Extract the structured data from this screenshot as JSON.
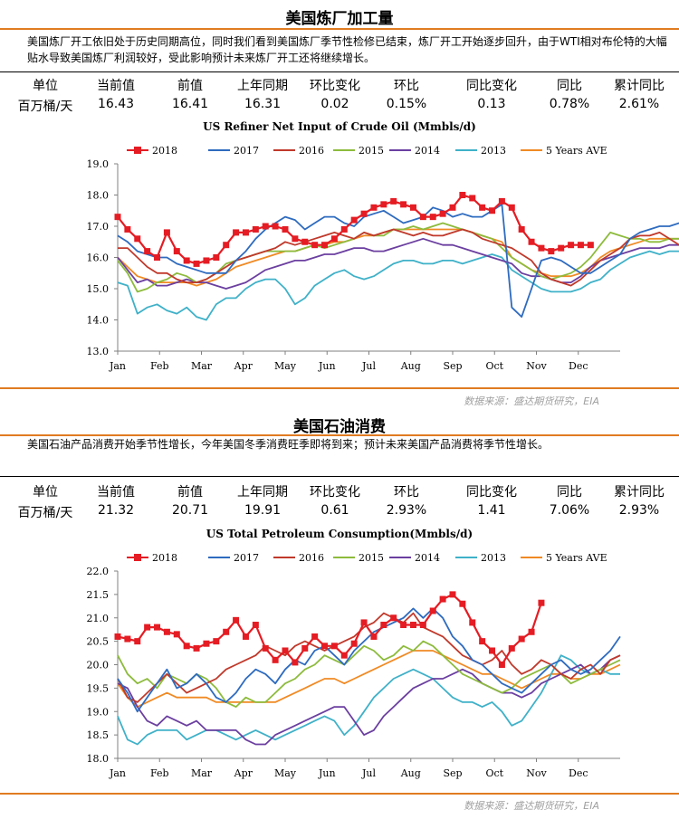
{
  "sections": [
    {
      "title": "美国炼厂加工量",
      "description": "美国炼厂开工依旧处于历史同期高位，同时我们看到美国炼厂季节性检修已结束，炼厂开工开始逐步回升，由于WTI相对布伦特的大幅贴水导致美国炼厂利润较好，受此影响预计未来炼厂开工还将继续增长。",
      "stats_headers": [
        "单位",
        "当前值",
        "前值",
        "上年同期",
        "环比变化",
        "环比",
        "同比变化",
        "同比",
        "累计同比"
      ],
      "stats_values": [
        "百万桶/天",
        "16.43",
        "16.41",
        "16.31",
        "0.02",
        "0.15%",
        "0.13",
        "0.78%",
        "2.61%"
      ],
      "source": "数据来源：盛达期货研究，EIA"
    },
    {
      "title": "美国石油消费",
      "description": "美国石油产品消费开始季节性增长，今年美国冬季消费旺季即将到来；预计未来美国产品消费将季节性增长。",
      "stats_headers": [
        "单位",
        "当前值",
        "前值",
        "上年同期",
        "环比变化",
        "环比",
        "同比变化",
        "同比",
        "累计同比"
      ],
      "stats_values": [
        "百万桶/天",
        "21.32",
        "20.71",
        "19.91",
        "0.61",
        "2.93%",
        "1.41",
        "7.06%",
        "2.93%"
      ],
      "source": "数据来源：盛达期货研究，EIA"
    }
  ],
  "chart_data": [
    {
      "type": "line",
      "title": "US Refiner Net Input of Crude Oil (Mmbls/d)",
      "x_labels": [
        "Jan",
        "Feb",
        "Mar",
        "Apr",
        "May",
        "Jun",
        "Jul",
        "Aug",
        "Sep",
        "Oct",
        "Nov",
        "Dec"
      ],
      "y_ticks": [
        "19.0",
        "18.0",
        "17.0",
        "16.0",
        "15.0",
        "14.0",
        "13.0"
      ],
      "ylim": [
        13,
        19
      ],
      "weeks": 52,
      "grid": false,
      "legend_position": "top",
      "series": [
        {
          "name": "2018",
          "color": "#e51c23",
          "marker": true,
          "values": [
            17.3,
            16.9,
            16.6,
            16.2,
            16.0,
            16.8,
            16.2,
            15.9,
            15.8,
            15.9,
            16.0,
            16.4,
            16.8,
            16.8,
            16.9,
            17.0,
            17.0,
            16.9,
            16.6,
            16.5,
            16.4,
            16.4,
            16.6,
            16.9,
            17.2,
            17.4,
            17.6,
            17.7,
            17.8,
            17.7,
            17.6,
            17.3,
            17.3,
            17.4,
            17.6,
            18.0,
            17.9,
            17.6,
            17.5,
            17.8,
            17.6,
            16.9,
            16.5,
            16.3,
            16.2,
            16.3,
            16.4,
            16.4,
            16.4
          ]
        },
        {
          "name": "2017",
          "color": "#2e6bbf",
          "values": [
            16.7,
            16.5,
            16.2,
            16.1,
            16.0,
            16.0,
            15.8,
            15.7,
            15.6,
            15.5,
            15.5,
            15.5,
            15.9,
            16.2,
            16.6,
            16.9,
            17.1,
            17.3,
            17.2,
            16.9,
            17.1,
            17.3,
            17.3,
            17.1,
            17.0,
            17.3,
            17.4,
            17.5,
            17.3,
            17.1,
            17.2,
            17.3,
            17.6,
            17.5,
            17.3,
            17.4,
            17.3,
            17.3,
            17.5,
            17.7,
            14.4,
            14.1,
            15.0,
            15.9,
            16.0,
            15.9,
            15.7,
            15.5,
            15.5,
            15.7,
            15.9,
            16.1,
            16.6,
            16.8,
            16.9,
            17.0,
            17.0,
            17.1,
            17.2,
            16.9,
            17.0,
            17.4
          ]
        },
        {
          "name": "2016",
          "color": "#c0392b",
          "values": [
            16.3,
            16.3,
            16.0,
            15.7,
            15.5,
            15.5,
            15.3,
            15.2,
            15.2,
            15.3,
            15.5,
            15.7,
            15.9,
            16.0,
            16.1,
            16.2,
            16.3,
            16.5,
            16.4,
            16.5,
            16.6,
            16.7,
            16.8,
            16.7,
            16.6,
            16.8,
            16.7,
            16.8,
            16.9,
            16.8,
            16.7,
            16.8,
            16.7,
            16.7,
            16.8,
            16.9,
            16.8,
            16.6,
            16.5,
            16.4,
            16.3,
            16.1,
            15.9,
            15.5,
            15.3,
            15.2,
            15.1,
            15.3,
            15.6,
            15.9,
            16.1,
            16.3,
            16.6,
            16.7,
            16.7,
            16.8,
            16.6,
            16.4,
            16.5,
            16.5,
            16.6,
            16.6
          ]
        },
        {
          "name": "2015",
          "color": "#8dbb3c",
          "values": [
            15.9,
            15.5,
            14.9,
            15.0,
            15.2,
            15.3,
            15.5,
            15.4,
            15.2,
            15.3,
            15.5,
            15.8,
            15.9,
            16.0,
            16.1,
            16.2,
            16.2,
            16.2,
            16.2,
            16.3,
            16.4,
            16.3,
            16.4,
            16.5,
            16.6,
            16.8,
            16.7,
            16.7,
            16.9,
            16.9,
            17.0,
            16.9,
            17.0,
            17.1,
            17.0,
            16.9,
            16.8,
            16.7,
            16.6,
            16.3,
            16.0,
            15.8,
            15.6,
            15.4,
            15.3,
            15.4,
            15.5,
            15.7,
            16.0,
            16.4,
            16.8,
            16.7,
            16.6,
            16.6,
            16.5,
            16.5,
            16.6,
            16.6,
            16.7,
            16.7,
            16.5,
            16.6
          ]
        },
        {
          "name": "2014",
          "color": "#6b3fa0",
          "values": [
            16.0,
            15.6,
            15.2,
            15.3,
            15.1,
            15.1,
            15.2,
            15.3,
            15.2,
            15.2,
            15.1,
            15.0,
            15.1,
            15.2,
            15.4,
            15.6,
            15.7,
            15.8,
            15.9,
            15.9,
            16.0,
            16.1,
            16.1,
            16.2,
            16.3,
            16.3,
            16.2,
            16.2,
            16.3,
            16.4,
            16.5,
            16.6,
            16.5,
            16.4,
            16.4,
            16.3,
            16.2,
            16.1,
            16.0,
            15.9,
            15.8,
            15.5,
            15.4,
            15.4,
            15.3,
            15.2,
            15.2,
            15.4,
            15.7,
            15.9,
            16.0,
            16.1,
            16.2,
            16.3,
            16.3,
            16.3,
            16.4,
            16.4,
            16.4,
            16.4,
            16.3,
            16.4
          ]
        },
        {
          "name": "2013",
          "color": "#3fb1c8",
          "values": [
            15.2,
            15.1,
            14.2,
            14.4,
            14.5,
            14.3,
            14.2,
            14.4,
            14.1,
            14.0,
            14.5,
            14.7,
            14.7,
            15.0,
            15.2,
            15.3,
            15.3,
            15.0,
            14.5,
            14.7,
            15.1,
            15.3,
            15.5,
            15.6,
            15.4,
            15.3,
            15.4,
            15.6,
            15.8,
            15.9,
            15.9,
            15.8,
            15.8,
            15.9,
            15.9,
            15.8,
            15.9,
            16.0,
            16.1,
            16.0,
            15.6,
            15.4,
            15.2,
            15.0,
            14.9,
            14.9,
            14.9,
            15.0,
            15.2,
            15.3,
            15.6,
            15.8,
            16.0,
            16.1,
            16.2,
            16.1,
            16.2,
            16.2,
            16.3,
            16.2,
            16.2,
            16.3
          ]
        },
        {
          "name": "5 Years AVE",
          "color": "#f08a24",
          "values": [
            16.0,
            15.7,
            15.4,
            15.3,
            15.2,
            15.2,
            15.2,
            15.2,
            15.1,
            15.2,
            15.3,
            15.5,
            15.7,
            15.8,
            15.9,
            16.0,
            16.1,
            16.2,
            16.2,
            16.3,
            16.4,
            16.4,
            16.5,
            16.5,
            16.6,
            16.7,
            16.7,
            16.8,
            16.9,
            16.9,
            16.9,
            16.9,
            16.9,
            16.9,
            16.9,
            16.9,
            16.8,
            16.7,
            16.6,
            16.5,
            16.0,
            15.8,
            15.6,
            15.5,
            15.4,
            15.4,
            15.4,
            15.5,
            15.7,
            16.0,
            16.2,
            16.3,
            16.4,
            16.5,
            16.6,
            16.6,
            16.6,
            16.6,
            16.6,
            16.6,
            16.6,
            16.7
          ]
        }
      ]
    },
    {
      "type": "line",
      "title": "US Total Petroleum Consumption(Mmbls/d)",
      "x_labels": [
        "Jan",
        "Feb",
        "Mar",
        "Apr",
        "May",
        "Jun",
        "Jul",
        "Aug",
        "Sep",
        "Oct",
        "Nov",
        "Dec"
      ],
      "y_ticks": [
        "22.0",
        "21.5",
        "21.0",
        "20.5",
        "20.0",
        "19.5",
        "19.0",
        "18.5",
        "18.0"
      ],
      "ylim": [
        18,
        22
      ],
      "weeks": 52,
      "grid": false,
      "legend_position": "top",
      "series": [
        {
          "name": "2018",
          "color": "#e51c23",
          "marker": true,
          "values": [
            20.6,
            20.55,
            20.5,
            20.8,
            20.8,
            20.7,
            20.65,
            20.4,
            20.35,
            20.45,
            20.5,
            20.7,
            20.95,
            20.6,
            20.85,
            20.35,
            20.1,
            20.3,
            20.05,
            20.35,
            20.6,
            20.4,
            20.4,
            20.2,
            20.45,
            20.9,
            20.6,
            20.85,
            21.0,
            20.85,
            20.85,
            20.85,
            21.15,
            21.4,
            21.5,
            21.3,
            20.9,
            20.5,
            20.3,
            20.0,
            20.35,
            20.55,
            20.7,
            21.32
          ]
        },
        {
          "name": "2017",
          "color": "#2e6bbf",
          "values": [
            19.7,
            19.4,
            19.0,
            19.3,
            19.6,
            19.9,
            19.5,
            19.6,
            19.8,
            19.6,
            19.3,
            19.2,
            19.4,
            19.7,
            19.9,
            19.8,
            19.6,
            19.9,
            20.1,
            20.0,
            20.3,
            20.4,
            20.2,
            20.0,
            20.3,
            20.5,
            20.7,
            20.8,
            20.9,
            21.0,
            21.2,
            21.0,
            21.2,
            21.0,
            20.6,
            20.4,
            20.1,
            20.0,
            19.8,
            19.6,
            19.5,
            19.4,
            19.6,
            19.8,
            20.0,
            20.1,
            19.9,
            19.8,
            19.9,
            20.1,
            20.3,
            20.6
          ]
        },
        {
          "name": "2016",
          "color": "#c0392b",
          "values": [
            19.7,
            19.3,
            19.2,
            19.4,
            19.6,
            19.8,
            19.6,
            19.4,
            19.5,
            19.6,
            19.7,
            19.9,
            20.0,
            20.1,
            20.2,
            20.4,
            20.3,
            20.2,
            20.4,
            20.5,
            20.4,
            20.3,
            20.4,
            20.5,
            20.6,
            20.8,
            20.9,
            21.1,
            21.0,
            20.9,
            21.1,
            20.8,
            20.7,
            20.6,
            20.4,
            20.2,
            20.1,
            20.0,
            20.1,
            20.3,
            20.0,
            19.8,
            19.9,
            20.1,
            20.0,
            19.8,
            19.7,
            19.9,
            20.0,
            19.8,
            20.1,
            20.2
          ]
        },
        {
          "name": "2015",
          "color": "#8dbb3c",
          "values": [
            20.2,
            19.8,
            19.6,
            19.7,
            19.5,
            19.8,
            19.7,
            19.6,
            19.8,
            19.7,
            19.5,
            19.2,
            19.1,
            19.3,
            19.2,
            19.2,
            19.4,
            19.6,
            19.7,
            19.9,
            20.0,
            20.2,
            20.1,
            20.0,
            20.2,
            20.4,
            20.3,
            20.1,
            20.2,
            20.4,
            20.3,
            20.5,
            20.4,
            20.2,
            20.0,
            19.8,
            19.7,
            19.6,
            19.5,
            19.4,
            19.5,
            19.7,
            19.8,
            19.9,
            20.0,
            19.8,
            19.6,
            19.7,
            19.8,
            19.9,
            20.0,
            20.1
          ]
        },
        {
          "name": "2014",
          "color": "#6b3fa0",
          "values": [
            19.6,
            19.5,
            19.1,
            18.8,
            18.7,
            18.9,
            18.8,
            18.7,
            18.8,
            18.6,
            18.6,
            18.6,
            18.6,
            18.4,
            18.3,
            18.3,
            18.5,
            18.6,
            18.7,
            18.8,
            18.9,
            19.0,
            19.1,
            19.1,
            18.8,
            18.5,
            18.6,
            18.9,
            19.1,
            19.3,
            19.5,
            19.6,
            19.7,
            19.7,
            19.8,
            19.9,
            19.8,
            19.6,
            19.5,
            19.4,
            19.4,
            19.3,
            19.4,
            19.6,
            19.7,
            19.8,
            19.9,
            20.0,
            19.8,
            19.9,
            20.1,
            20.2
          ]
        },
        {
          "name": "2013",
          "color": "#3fb1c8",
          "values": [
            18.9,
            18.4,
            18.3,
            18.5,
            18.6,
            18.6,
            18.6,
            18.4,
            18.5,
            18.6,
            18.6,
            18.5,
            18.4,
            18.5,
            18.6,
            18.5,
            18.4,
            18.5,
            18.6,
            18.7,
            18.8,
            18.9,
            18.8,
            18.5,
            18.7,
            19.0,
            19.3,
            19.5,
            19.7,
            19.8,
            19.9,
            19.8,
            19.7,
            19.5,
            19.3,
            19.2,
            19.2,
            19.1,
            19.2,
            19.0,
            18.7,
            18.8,
            19.1,
            19.4,
            19.8,
            20.2,
            20.1,
            19.9,
            19.8,
            19.9,
            19.8,
            19.8
          ]
        },
        {
          "name": "5 Years AVE",
          "color": "#f08a24",
          "values": [
            19.6,
            19.3,
            19.1,
            19.2,
            19.3,
            19.4,
            19.3,
            19.3,
            19.3,
            19.3,
            19.2,
            19.2,
            19.2,
            19.2,
            19.2,
            19.2,
            19.2,
            19.3,
            19.4,
            19.5,
            19.6,
            19.7,
            19.7,
            19.6,
            19.7,
            19.8,
            19.9,
            20.0,
            20.1,
            20.2,
            20.3,
            20.3,
            20.3,
            20.2,
            20.1,
            20.0,
            19.9,
            19.8,
            19.8,
            19.7,
            19.6,
            19.5,
            19.6,
            19.7,
            19.8,
            19.8,
            19.7,
            19.7,
            19.8,
            19.8,
            19.9,
            20.0
          ]
        }
      ]
    }
  ]
}
